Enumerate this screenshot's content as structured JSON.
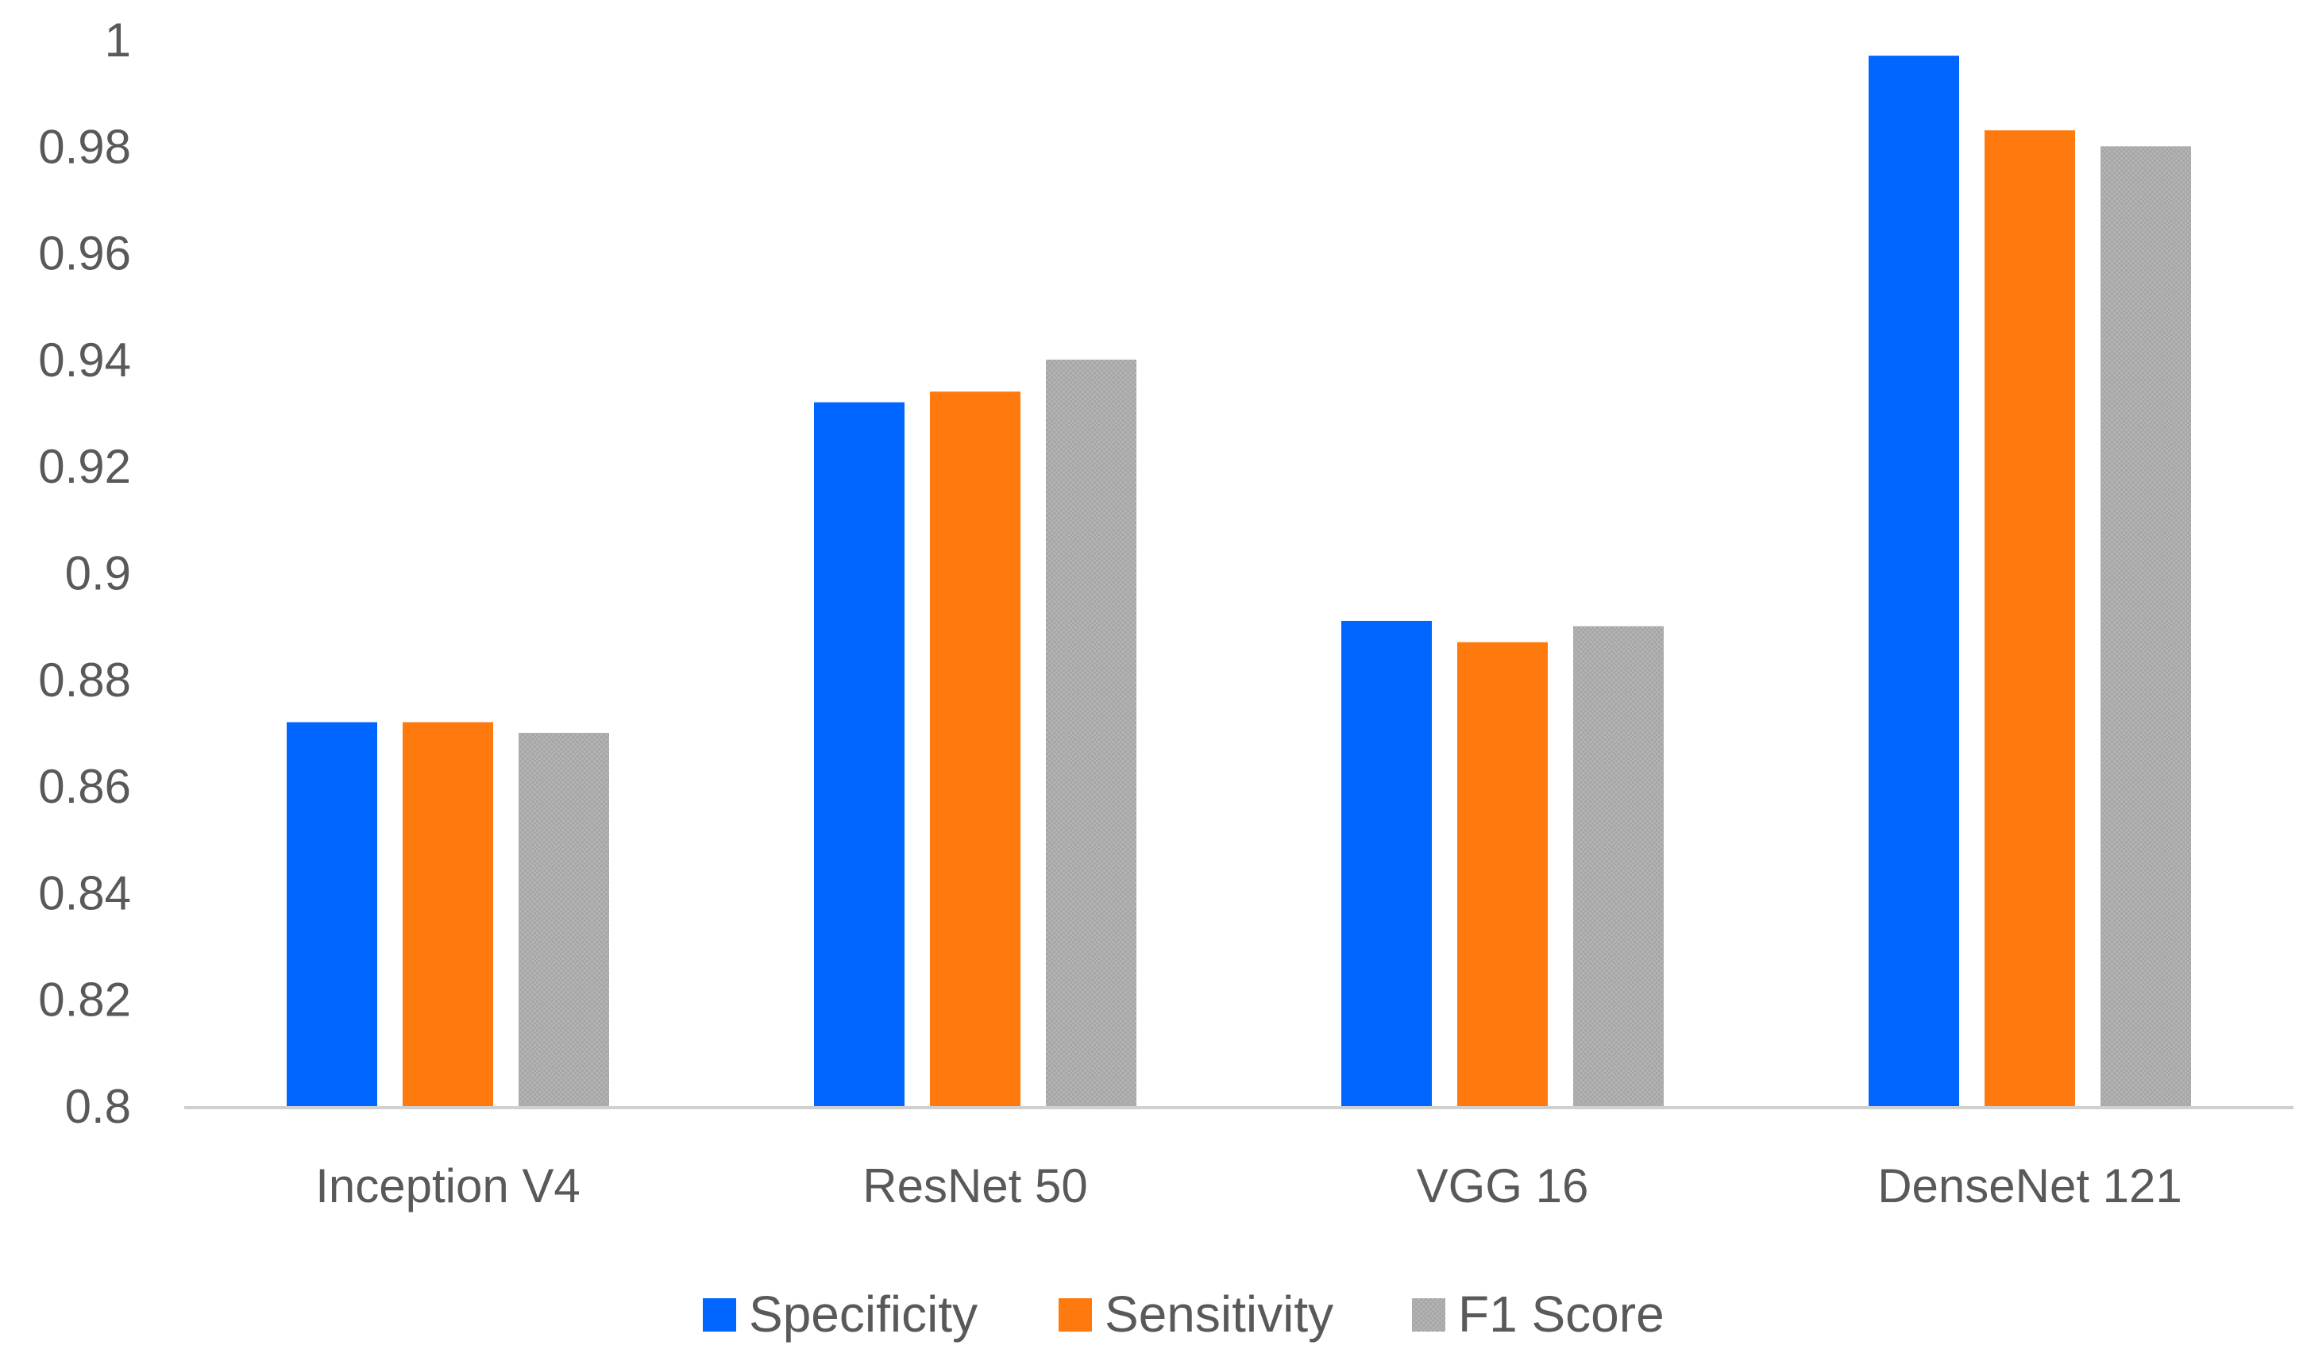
{
  "chart_data": {
    "type": "bar",
    "title": "",
    "xlabel": "",
    "ylabel": "",
    "categories": [
      "Inception V4",
      "ResNet 50",
      "VGG 16",
      "DenseNet 121"
    ],
    "series": [
      {
        "name": "Specificity",
        "color": "#0066FF",
        "values": [
          0.872,
          0.932,
          0.891,
          0.997
        ]
      },
      {
        "name": "Sensitivity",
        "color": "#FF7A0E",
        "values": [
          0.872,
          0.934,
          0.887,
          0.983
        ]
      },
      {
        "name": "F1 Score",
        "color": "#A6A6A6",
        "values": [
          0.87,
          0.94,
          0.89,
          0.98
        ]
      }
    ],
    "ylim": [
      0.8,
      1.0
    ],
    "yticks": [
      "0.8",
      "0.82",
      "0.84",
      "0.86",
      "0.88",
      "0.9",
      "0.92",
      "0.94",
      "0.96",
      "0.98",
      "1"
    ],
    "grid": false,
    "legend_position": "bottom-center"
  }
}
